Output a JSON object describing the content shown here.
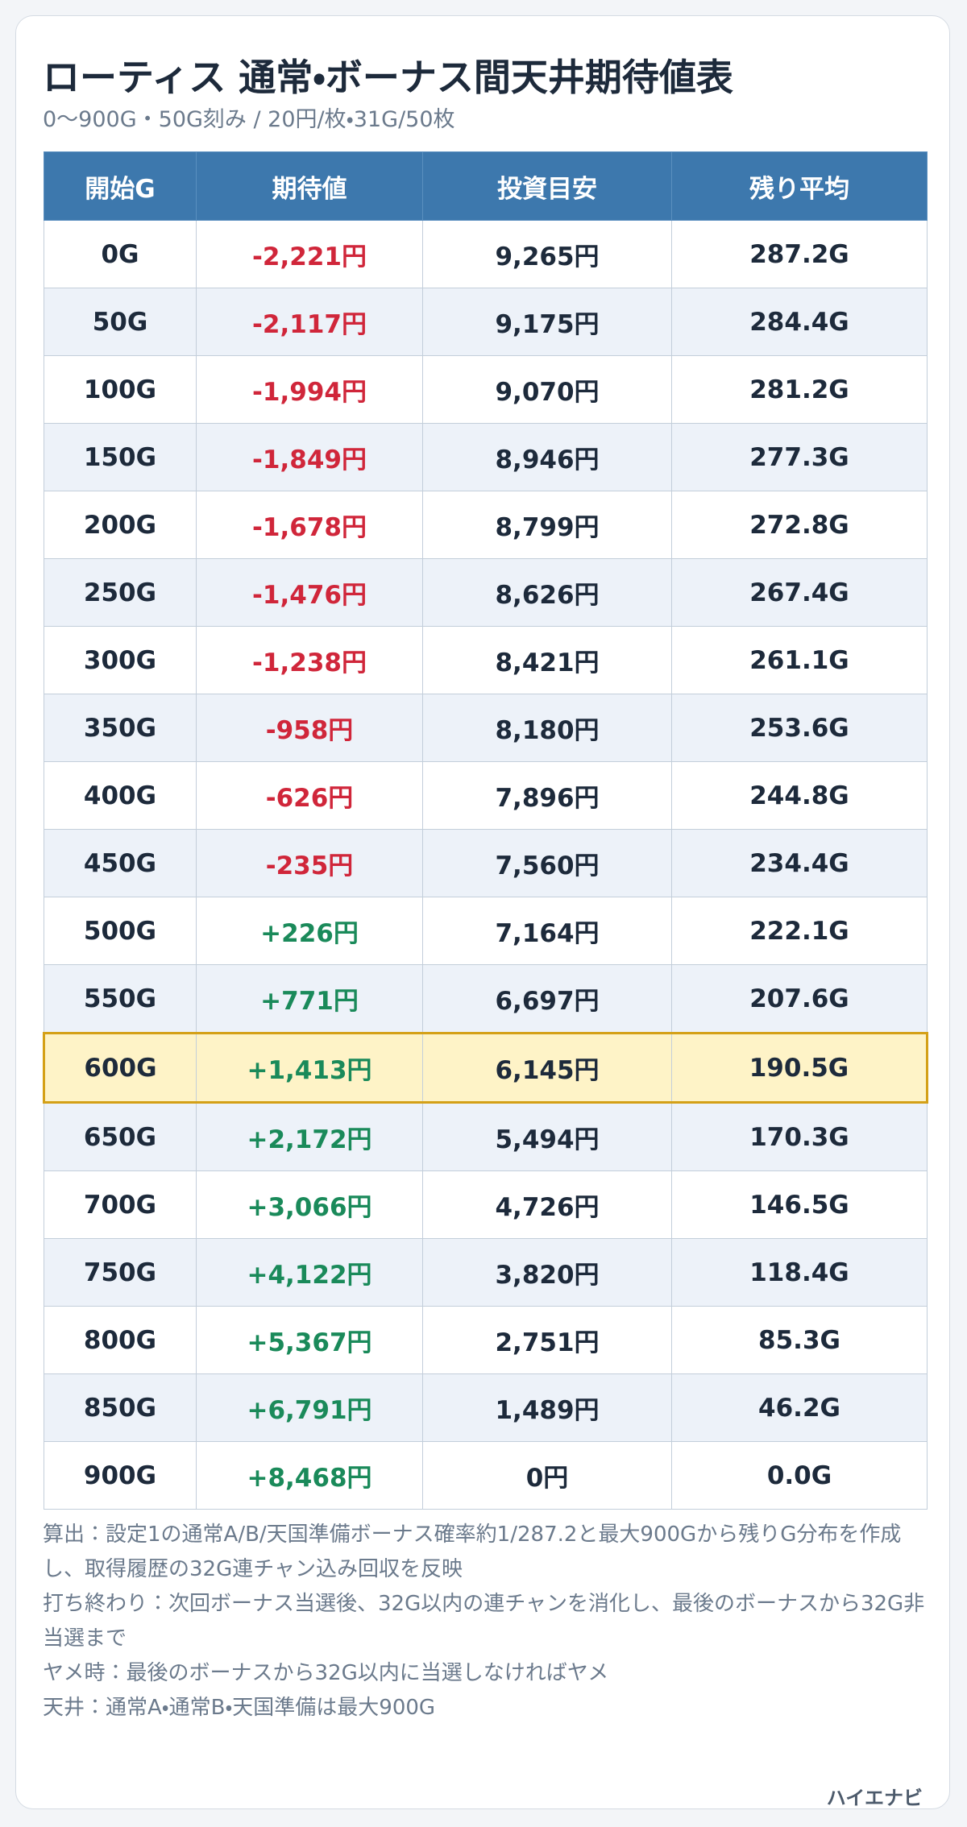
{
  "header": {
    "title": "ローティス 通常・ボーナス間天井期待値表",
    "subtitle": "0〜900G・50G刻み / 20円/枚・31G/50枚"
  },
  "table": {
    "columns": [
      "開始G",
      "期待値",
      "投資目安",
      "残り平均"
    ],
    "rows": [
      [
        "0G",
        "-2,221円",
        "9,265円",
        "287.2G"
      ],
      [
        "50G",
        "-2,117円",
        "9,175円",
        "284.4G"
      ],
      [
        "100G",
        "-1,994円",
        "9,070円",
        "281.2G"
      ],
      [
        "150G",
        "-1,849円",
        "8,946円",
        "277.3G"
      ],
      [
        "200G",
        "-1,678円",
        "8,799円",
        "272.8G"
      ],
      [
        "250G",
        "-1,476円",
        "8,626円",
        "267.4G"
      ],
      [
        "300G",
        "-1,238円",
        "8,421円",
        "261.1G"
      ],
      [
        "350G",
        "-958円",
        "8,180円",
        "253.6G"
      ],
      [
        "400G",
        "-626円",
        "7,896円",
        "244.8G"
      ],
      [
        "450G",
        "-235円",
        "7,560円",
        "234.4G"
      ],
      [
        "500G",
        "+226円",
        "7,164円",
        "222.1G"
      ],
      [
        "550G",
        "+771円",
        "6,697円",
        "207.6G"
      ],
      [
        "600G",
        "+1,413円",
        "6,145円",
        "190.5G"
      ],
      [
        "650G",
        "+2,172円",
        "5,494円",
        "170.3G"
      ],
      [
        "700G",
        "+3,066円",
        "4,726円",
        "146.5G"
      ],
      [
        "750G",
        "+4,122円",
        "3,820円",
        "118.4G"
      ],
      [
        "800G",
        "+5,367円",
        "2,751円",
        "85.3G"
      ],
      [
        "850G",
        "+6,791円",
        "1,489円",
        "46.2G"
      ],
      [
        "900G",
        "+8,468円",
        "0円",
        "0.0G"
      ]
    ]
  },
  "notes": [
    "算出：設定1の通常A/B/天国準備ボーナス確率約1/287.2と最大900Gから残りG分布を作成し、取得履歴の32G連チャン込み回収を反映",
    "打ち終わり：次回ボーナス当選後、32G以内の連チャンを消化し、最後のボーナスから32G非当選まで",
    "ヤメ時：最後のボーナスから32G以内に当選しなければヤメ",
    "天井：通常A・通常B・天国準備は最大900G"
  ],
  "footer": {
    "brand": "ハイエナビ"
  }
}
